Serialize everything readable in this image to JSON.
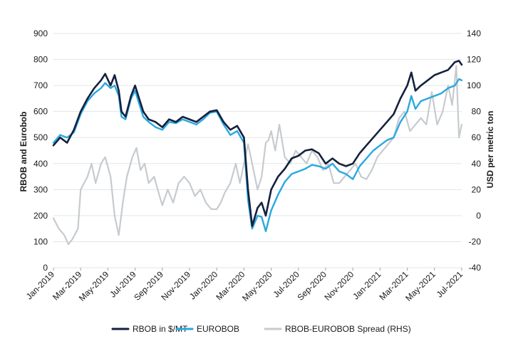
{
  "chart_data": {
    "type": "line",
    "title": "",
    "ylabel_left": "RBOB and Eurobob",
    "ylabel_right": "USD per metric ton",
    "ylim_left": [
      0,
      900
    ],
    "ylim_right": [
      -40,
      140
    ],
    "yticks_left": [
      0,
      100,
      200,
      300,
      400,
      500,
      600,
      700,
      800,
      900
    ],
    "yticks_right": [
      -40,
      -20,
      0,
      20,
      40,
      60,
      80,
      100,
      120,
      140
    ],
    "xlim": [
      0,
      30
    ],
    "xticks": [
      {
        "x": 0,
        "label": "Jan-2019"
      },
      {
        "x": 2,
        "label": "Mar-2019"
      },
      {
        "x": 4,
        "label": "May-2019"
      },
      {
        "x": 6,
        "label": "Jul-2019"
      },
      {
        "x": 8,
        "label": "Sep-2019"
      },
      {
        "x": 10,
        "label": "Nov-2019"
      },
      {
        "x": 12,
        "label": "Jan-2020"
      },
      {
        "x": 14,
        "label": "Mar-2020"
      },
      {
        "x": 16,
        "label": "May-2020"
      },
      {
        "x": 18,
        "label": "Jul-2020"
      },
      {
        "x": 20,
        "label": "Sep-2020"
      },
      {
        "x": 22,
        "label": "Nov-2020"
      },
      {
        "x": 24,
        "label": "Jan-2021"
      },
      {
        "x": 26,
        "label": "Mar-2021"
      },
      {
        "x": 28,
        "label": "May-2021"
      },
      {
        "x": 30,
        "label": "Jul-2021"
      }
    ],
    "grid": true,
    "legend_position": "bottom",
    "series": [
      {
        "name": "RBOB in $/MT",
        "axis": "left",
        "color": "#14213d",
        "points": [
          [
            0.0,
            470
          ],
          [
            0.5,
            500
          ],
          [
            1.0,
            480
          ],
          [
            1.5,
            530
          ],
          [
            2.0,
            600
          ],
          [
            2.5,
            650
          ],
          [
            3.0,
            690
          ],
          [
            3.5,
            720
          ],
          [
            3.8,
            745
          ],
          [
            4.2,
            700
          ],
          [
            4.5,
            740
          ],
          [
            4.8,
            680
          ],
          [
            5.0,
            600
          ],
          [
            5.3,
            580
          ],
          [
            5.7,
            660
          ],
          [
            6.0,
            700
          ],
          [
            6.3,
            650
          ],
          [
            6.6,
            600
          ],
          [
            7.0,
            570
          ],
          [
            7.5,
            560
          ],
          [
            8.0,
            540
          ],
          [
            8.5,
            570
          ],
          [
            9.0,
            560
          ],
          [
            9.5,
            580
          ],
          [
            10.0,
            570
          ],
          [
            10.5,
            560
          ],
          [
            11.0,
            580
          ],
          [
            11.5,
            600
          ],
          [
            12.0,
            605
          ],
          [
            12.5,
            560
          ],
          [
            13.0,
            530
          ],
          [
            13.5,
            545
          ],
          [
            14.0,
            500
          ],
          [
            14.3,
            300
          ],
          [
            14.6,
            160
          ],
          [
            15.0,
            230
          ],
          [
            15.3,
            250
          ],
          [
            15.6,
            200
          ],
          [
            16.0,
            300
          ],
          [
            16.5,
            350
          ],
          [
            17.0,
            380
          ],
          [
            17.5,
            420
          ],
          [
            18.0,
            430
          ],
          [
            18.5,
            450
          ],
          [
            19.0,
            455
          ],
          [
            19.5,
            440
          ],
          [
            20.0,
            400
          ],
          [
            20.5,
            420
          ],
          [
            21.0,
            400
          ],
          [
            21.5,
            390
          ],
          [
            22.0,
            400
          ],
          [
            22.5,
            440
          ],
          [
            23.0,
            470
          ],
          [
            23.5,
            500
          ],
          [
            24.0,
            530
          ],
          [
            24.5,
            560
          ],
          [
            25.0,
            590
          ],
          [
            25.5,
            650
          ],
          [
            26.0,
            700
          ],
          [
            26.3,
            750
          ],
          [
            26.6,
            680
          ],
          [
            27.0,
            700
          ],
          [
            27.5,
            720
          ],
          [
            28.0,
            740
          ],
          [
            28.5,
            750
          ],
          [
            29.0,
            760
          ],
          [
            29.5,
            790
          ],
          [
            29.8,
            795
          ],
          [
            30.0,
            780
          ]
        ]
      },
      {
        "name": "EUROBOB",
        "axis": "left",
        "color": "#29a8e0",
        "points": [
          [
            0.0,
            480
          ],
          [
            0.5,
            510
          ],
          [
            1.0,
            500
          ],
          [
            1.5,
            520
          ],
          [
            2.0,
            590
          ],
          [
            2.5,
            640
          ],
          [
            3.0,
            670
          ],
          [
            3.5,
            690
          ],
          [
            3.8,
            710
          ],
          [
            4.2,
            690
          ],
          [
            4.5,
            700
          ],
          [
            4.8,
            660
          ],
          [
            5.0,
            580
          ],
          [
            5.3,
            570
          ],
          [
            5.7,
            650
          ],
          [
            6.0,
            680
          ],
          [
            6.3,
            630
          ],
          [
            6.6,
            580
          ],
          [
            7.0,
            560
          ],
          [
            7.5,
            540
          ],
          [
            8.0,
            530
          ],
          [
            8.5,
            560
          ],
          [
            9.0,
            555
          ],
          [
            9.5,
            570
          ],
          [
            10.0,
            560
          ],
          [
            10.5,
            550
          ],
          [
            11.0,
            570
          ],
          [
            11.5,
            595
          ],
          [
            12.0,
            600
          ],
          [
            12.5,
            550
          ],
          [
            13.0,
            510
          ],
          [
            13.5,
            525
          ],
          [
            14.0,
            480
          ],
          [
            14.3,
            260
          ],
          [
            14.6,
            150
          ],
          [
            15.0,
            200
          ],
          [
            15.3,
            195
          ],
          [
            15.6,
            140
          ],
          [
            16.0,
            220
          ],
          [
            16.5,
            280
          ],
          [
            17.0,
            330
          ],
          [
            17.5,
            360
          ],
          [
            18.0,
            370
          ],
          [
            18.5,
            380
          ],
          [
            19.0,
            395
          ],
          [
            19.5,
            390
          ],
          [
            20.0,
            380
          ],
          [
            20.5,
            400
          ],
          [
            21.0,
            370
          ],
          [
            21.5,
            360
          ],
          [
            22.0,
            340
          ],
          [
            22.5,
            390
          ],
          [
            23.0,
            420
          ],
          [
            23.5,
            450
          ],
          [
            24.0,
            470
          ],
          [
            24.5,
            490
          ],
          [
            25.0,
            500
          ],
          [
            25.5,
            560
          ],
          [
            26.0,
            600
          ],
          [
            26.3,
            660
          ],
          [
            26.6,
            610
          ],
          [
            27.0,
            640
          ],
          [
            27.5,
            650
          ],
          [
            28.0,
            660
          ],
          [
            28.5,
            670
          ],
          [
            29.0,
            690
          ],
          [
            29.5,
            700
          ],
          [
            29.8,
            725
          ],
          [
            30.0,
            720
          ]
        ]
      },
      {
        "name": "RBOB-EUROBOB Spread (RHS)",
        "axis": "right",
        "color": "#c6cbcf",
        "points": [
          [
            0.0,
            -2
          ],
          [
            0.4,
            -10
          ],
          [
            0.8,
            -15
          ],
          [
            1.1,
            -22
          ],
          [
            1.4,
            -18
          ],
          [
            1.8,
            -10
          ],
          [
            2.0,
            20
          ],
          [
            2.5,
            30
          ],
          [
            2.8,
            40
          ],
          [
            3.1,
            25
          ],
          [
            3.5,
            40
          ],
          [
            3.8,
            45
          ],
          [
            4.2,
            30
          ],
          [
            4.5,
            0
          ],
          [
            4.8,
            -15
          ],
          [
            5.1,
            10
          ],
          [
            5.4,
            30
          ],
          [
            5.8,
            45
          ],
          [
            6.1,
            52
          ],
          [
            6.4,
            35
          ],
          [
            6.7,
            40
          ],
          [
            7.0,
            25
          ],
          [
            7.4,
            30
          ],
          [
            7.8,
            15
          ],
          [
            8.0,
            8
          ],
          [
            8.4,
            20
          ],
          [
            8.8,
            10
          ],
          [
            9.2,
            25
          ],
          [
            9.6,
            30
          ],
          [
            10.0,
            25
          ],
          [
            10.4,
            15
          ],
          [
            10.8,
            20
          ],
          [
            11.2,
            10
          ],
          [
            11.6,
            5
          ],
          [
            12.0,
            5
          ],
          [
            12.3,
            10
          ],
          [
            12.6,
            18
          ],
          [
            13.0,
            25
          ],
          [
            13.4,
            40
          ],
          [
            13.7,
            25
          ],
          [
            14.0,
            40
          ],
          [
            14.3,
            55
          ],
          [
            14.6,
            40
          ],
          [
            15.0,
            20
          ],
          [
            15.3,
            30
          ],
          [
            15.6,
            56
          ],
          [
            15.8,
            58
          ],
          [
            16.0,
            65
          ],
          [
            16.3,
            50
          ],
          [
            16.6,
            70
          ],
          [
            17.0,
            45
          ],
          [
            17.4,
            40
          ],
          [
            17.8,
            50
          ],
          [
            18.2,
            45
          ],
          [
            18.6,
            40
          ],
          [
            19.0,
            50
          ],
          [
            19.4,
            45
          ],
          [
            19.8,
            35
          ],
          [
            20.2,
            40
          ],
          [
            20.6,
            25
          ],
          [
            21.0,
            25
          ],
          [
            21.4,
            30
          ],
          [
            21.8,
            35
          ],
          [
            22.2,
            40
          ],
          [
            22.6,
            30
          ],
          [
            23.0,
            28
          ],
          [
            23.4,
            35
          ],
          [
            23.8,
            45
          ],
          [
            24.2,
            50
          ],
          [
            24.6,
            55
          ],
          [
            25.0,
            60
          ],
          [
            25.4,
            75
          ],
          [
            25.8,
            80
          ],
          [
            26.2,
            65
          ],
          [
            26.6,
            70
          ],
          [
            27.0,
            75
          ],
          [
            27.4,
            70
          ],
          [
            27.8,
            95
          ],
          [
            28.2,
            70
          ],
          [
            28.6,
            80
          ],
          [
            29.0,
            100
          ],
          [
            29.3,
            85
          ],
          [
            29.6,
            115
          ],
          [
            29.8,
            60
          ],
          [
            30.0,
            70
          ]
        ]
      }
    ]
  }
}
